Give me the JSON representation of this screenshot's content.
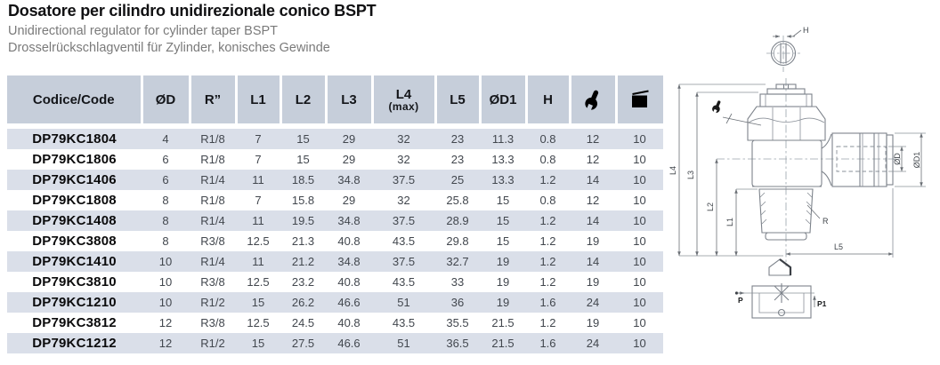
{
  "header": {
    "title": "Dosatore per cilindro unidirezionale conico BSPT",
    "subtitle_en": "Unidirectional regulator for cylinder taper BSPT",
    "subtitle_de": "Drosselrückschlagventil für Zylinder,  konisches Gewinde"
  },
  "table": {
    "columns": [
      {
        "label": "Codice/Code"
      },
      {
        "label": "ØD"
      },
      {
        "label": "R”"
      },
      {
        "label": "L1"
      },
      {
        "label": "L2"
      },
      {
        "label": "L3"
      },
      {
        "label": "L4",
        "sub": "(max)"
      },
      {
        "label": "L5"
      },
      {
        "label": "ØD1"
      },
      {
        "label": "H"
      },
      {
        "icon": "wrench-icon"
      },
      {
        "icon": "package-icon"
      }
    ],
    "rows": [
      {
        "code": "DP79KC1804",
        "values": [
          "4",
          "R1/8",
          "7",
          "15",
          "29",
          "32",
          "23",
          "11.3",
          "0.8",
          "12",
          "10"
        ]
      },
      {
        "code": "DP79KC1806",
        "values": [
          "6",
          "R1/8",
          "7",
          "15",
          "29",
          "32",
          "23",
          "13.3",
          "0.8",
          "12",
          "10"
        ]
      },
      {
        "code": "DP79KC1406",
        "values": [
          "6",
          "R1/4",
          "11",
          "18.5",
          "34.8",
          "37.5",
          "25",
          "13.3",
          "1.2",
          "14",
          "10"
        ]
      },
      {
        "code": "DP79KC1808",
        "values": [
          "8",
          "R1/8",
          "7",
          "15.8",
          "29",
          "32",
          "25.8",
          "15",
          "0.8",
          "12",
          "10"
        ]
      },
      {
        "code": "DP79KC1408",
        "values": [
          "8",
          "R1/4",
          "11",
          "19.5",
          "34.8",
          "37.5",
          "28.9",
          "15",
          "1.2",
          "14",
          "10"
        ]
      },
      {
        "code": "DP79KC3808",
        "values": [
          "8",
          "R3/8",
          "12.5",
          "21.3",
          "40.8",
          "43.5",
          "29.8",
          "15",
          "1.2",
          "19",
          "10"
        ]
      },
      {
        "code": "DP79KC1410",
        "values": [
          "10",
          "R1/4",
          "11",
          "21.2",
          "34.8",
          "37.5",
          "32.7",
          "19",
          "1.2",
          "14",
          "10"
        ]
      },
      {
        "code": "DP79KC3810",
        "values": [
          "10",
          "R3/8",
          "12.5",
          "23.2",
          "40.8",
          "43.5",
          "33",
          "19",
          "1.2",
          "19",
          "10"
        ]
      },
      {
        "code": "DP79KC1210",
        "values": [
          "10",
          "R1/2",
          "15",
          "26.2",
          "46.6",
          "51",
          "36",
          "19",
          "1.6",
          "24",
          "10"
        ]
      },
      {
        "code": "DP79KC3812",
        "values": [
          "12",
          "R3/8",
          "12.5",
          "24.5",
          "40.8",
          "43.5",
          "35.5",
          "21.5",
          "1.2",
          "19",
          "10"
        ]
      },
      {
        "code": "DP79KC1212",
        "values": [
          "12",
          "R1/2",
          "15",
          "27.5",
          "46.6",
          "51",
          "36.5",
          "21.5",
          "1.6",
          "24",
          "10"
        ]
      }
    ]
  },
  "diagram": {
    "dim_h": "H",
    "dim_l1": "L1",
    "dim_l2": "L2",
    "dim_l3": "L3",
    "dim_l4": "L4",
    "dim_l5": "L5",
    "dim_r": "R",
    "dim_od": "ØD",
    "dim_od1": "ØD1",
    "port_p": "P",
    "port_p1": "P1"
  },
  "colors": {
    "header_bg": "#c6ceda",
    "row_alt_bg": "#dadfe9",
    "title_text": "#101012",
    "subtitle_text": "#7a7a7a",
    "data_text": "#42474e",
    "line": "#7d838b",
    "dim": "#6b7076"
  }
}
